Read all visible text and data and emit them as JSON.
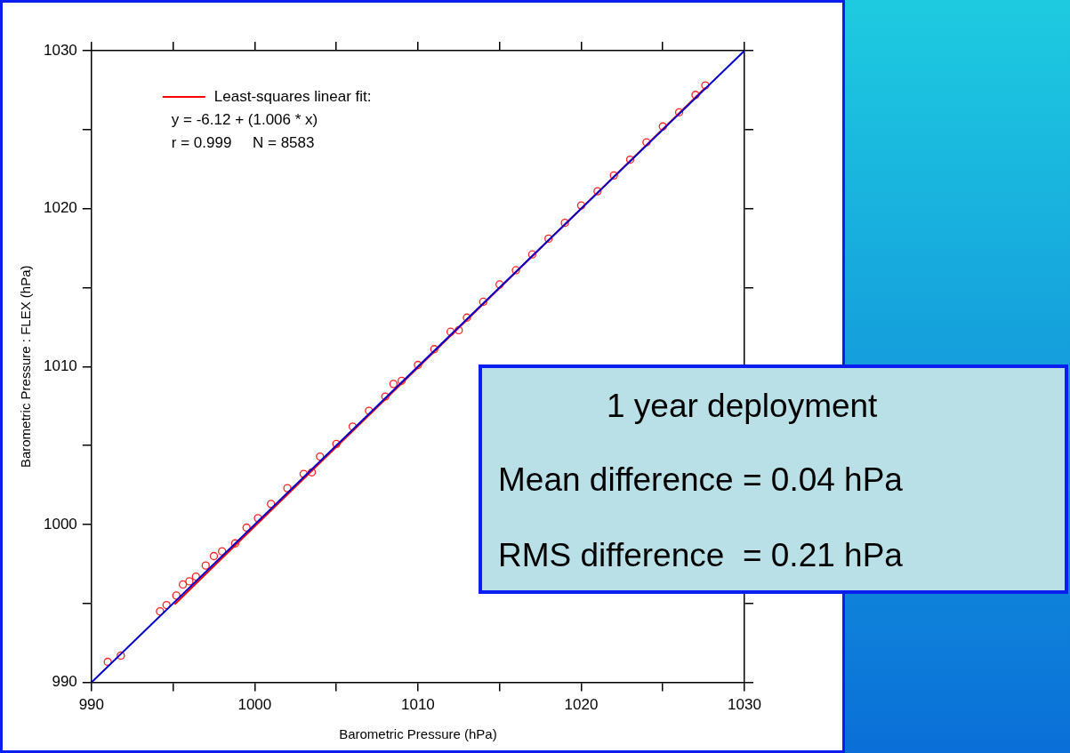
{
  "chart_data": {
    "type": "scatter",
    "xlabel": "Barometric Pressure (hPa)",
    "ylabel": "Barometric Pressure : FLEX (hPa)",
    "xlim": [
      990,
      1030
    ],
    "ylim": [
      990,
      1030
    ],
    "xticks": [
      990,
      {
        "value": 995,
        "label": null
      },
      1000,
      {
        "value": 1005,
        "label": null
      },
      1010,
      {
        "value": 1015,
        "label": null
      },
      1020,
      {
        "value": 1025,
        "label": null
      },
      1030
    ],
    "yticks": [
      990,
      {
        "value": 995,
        "label": null
      },
      1000,
      {
        "value": 1005,
        "label": null
      },
      1010,
      {
        "value": 1015,
        "label": null
      },
      1020,
      {
        "value": 1025,
        "label": null
      },
      1030
    ],
    "grid": false,
    "legend": "top left",
    "marker": "circle",
    "series": [
      {
        "color": "#ff2020",
        "x": [
          991.0,
          991.8,
          994.2,
          994.6,
          995.2,
          995.6,
          996.0,
          996.4,
          997.0,
          997.5,
          998.0,
          998.8,
          999.5,
          1000.2,
          1001,
          1002,
          1003,
          1003.5,
          1004,
          1005,
          1006,
          1007,
          1008,
          1008.5,
          1009,
          1010,
          1011,
          1012,
          1012.5,
          1013,
          1014,
          1015,
          1016,
          1017,
          1018,
          1019,
          1020,
          1021,
          1022,
          1023,
          1024,
          1025,
          1026,
          1027,
          1027.6
        ],
        "values": [
          991.3,
          991.7,
          994.5,
          994.9,
          995.5,
          996.2,
          996.4,
          996.7,
          997.4,
          998.0,
          998.3,
          998.8,
          999.8,
          1000.4,
          1001.3,
          1002.3,
          1003.2,
          1003.3,
          1004.3,
          1005.1,
          1006.2,
          1007.2,
          1008.1,
          1008.9,
          1009.1,
          1010.1,
          1011.1,
          1012.2,
          1012.3,
          1013.1,
          1014.1,
          1015.2,
          1016.1,
          1017.1,
          1018.1,
          1019.1,
          1020.2,
          1021.1,
          1022.1,
          1023.1,
          1024.2,
          1025.2,
          1026.1,
          1027.2,
          1027.8
        ]
      },
      {
        "type": "line",
        "marker": "none",
        "name": "Least-squares linear fit:",
        "color": "#ff0000",
        "x": [
          995.1,
          1027.6
        ],
        "values": [
          994.95,
          1027.65
        ]
      },
      {
        "type": "line",
        "marker": "none",
        "color": "#0000cc",
        "x": [
          990,
          1030
        ],
        "values": [
          990,
          1030
        ]
      }
    ],
    "annotations": [
      "y = -6.12 + (1.006 * x)",
      "r = 0.999     N = 8583",
      "1 year deployment",
      "Mean difference = 0.04 hPa",
      "RMS difference  = 0.21 hPa"
    ]
  }
}
